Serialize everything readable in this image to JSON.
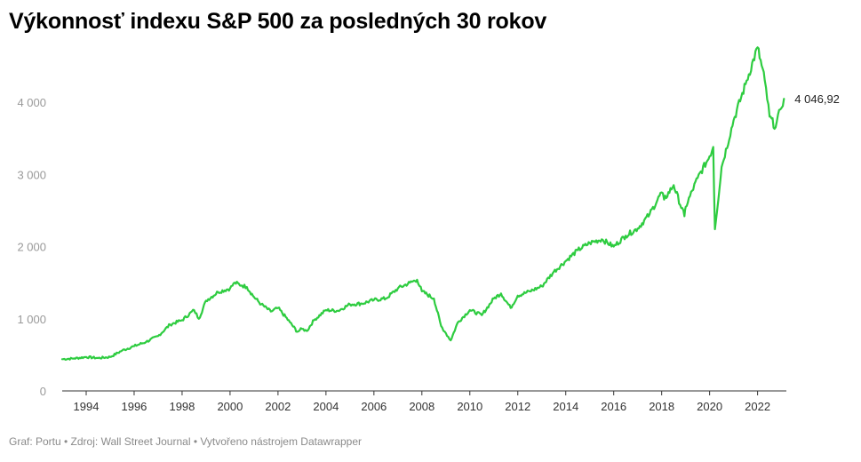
{
  "title": "Výkonnosť indexu S&P 500 za posledných 30 rokov",
  "footer": "Graf: Portu • Zdroj: Wall Street Journal • Vytvořeno nástrojem Datawrapper",
  "colors": {
    "line": "#2ecc40",
    "axis": "#333333",
    "y_tick_text": "#999999"
  },
  "chart_data": {
    "type": "line",
    "title": "Výkonnosť indexu S&P 500 za posledných 30 rokov",
    "xlabel": "",
    "ylabel": "",
    "xlim": [
      1993.0,
      2023.2
    ],
    "ylim": [
      0,
      4800
    ],
    "x_ticks": [
      1994,
      1996,
      1998,
      2000,
      2002,
      2004,
      2006,
      2008,
      2010,
      2012,
      2014,
      2016,
      2018,
      2020,
      2022
    ],
    "x_tick_labels": [
      "1994",
      "1996",
      "1998",
      "2000",
      "2002",
      "2004",
      "2006",
      "2008",
      "2010",
      "2012",
      "2014",
      "2016",
      "2018",
      "2020",
      "2022"
    ],
    "y_ticks": [
      0,
      1000,
      2000,
      3000,
      4000
    ],
    "y_tick_labels": [
      "0",
      "1 000",
      "2 000",
      "3 000",
      "4 000"
    ],
    "grid": false,
    "legend": "none",
    "end_label": "4 046,92",
    "series": [
      {
        "x": [
          1993.0,
          1993.5,
          1994.0,
          1994.5,
          1995.0,
          1995.5,
          1996.0,
          1996.5,
          1997.0,
          1997.5,
          1998.0,
          1998.5,
          1998.7,
          1999.0,
          1999.5,
          2000.0,
          2000.2,
          2000.5,
          2000.7,
          2001.0,
          2001.3,
          2001.7,
          2002.0,
          2002.5,
          2002.8,
          2003.0,
          2003.2,
          2003.5,
          2004.0,
          2004.5,
          2005.0,
          2005.5,
          2006.0,
          2006.5,
          2007.0,
          2007.5,
          2007.8,
          2008.0,
          2008.5,
          2008.8,
          2009.0,
          2009.2,
          2009.5,
          2010.0,
          2010.5,
          2011.0,
          2011.3,
          2011.7,
          2012.0,
          2012.5,
          2013.0,
          2013.5,
          2014.0,
          2014.5,
          2015.0,
          2015.5,
          2016.0,
          2016.5,
          2017.0,
          2017.5,
          2018.0,
          2018.1,
          2018.5,
          2018.95,
          2019.0,
          2019.5,
          2020.0,
          2020.15,
          2020.22,
          2020.5,
          2021.0,
          2021.5,
          2022.0,
          2022.3,
          2022.5,
          2022.75,
          2022.95,
          2023.1
        ],
        "y": [
          440,
          450,
          470,
          455,
          470,
          560,
          620,
          680,
          760,
          920,
          980,
          1120,
          1000,
          1250,
          1370,
          1420,
          1500,
          1460,
          1440,
          1300,
          1200,
          1100,
          1150,
          950,
          820,
          860,
          830,
          980,
          1120,
          1110,
          1200,
          1210,
          1260,
          1280,
          1420,
          1500,
          1540,
          1380,
          1280,
          900,
          800,
          700,
          950,
          1120,
          1050,
          1280,
          1350,
          1150,
          1320,
          1380,
          1450,
          1650,
          1800,
          1950,
          2050,
          2100,
          2000,
          2150,
          2250,
          2450,
          2750,
          2650,
          2850,
          2420,
          2550,
          2950,
          3250,
          3380,
          2240,
          3100,
          3750,
          4250,
          4760,
          4300,
          3800,
          3650,
          3900,
          4046.92
        ]
      }
    ]
  }
}
